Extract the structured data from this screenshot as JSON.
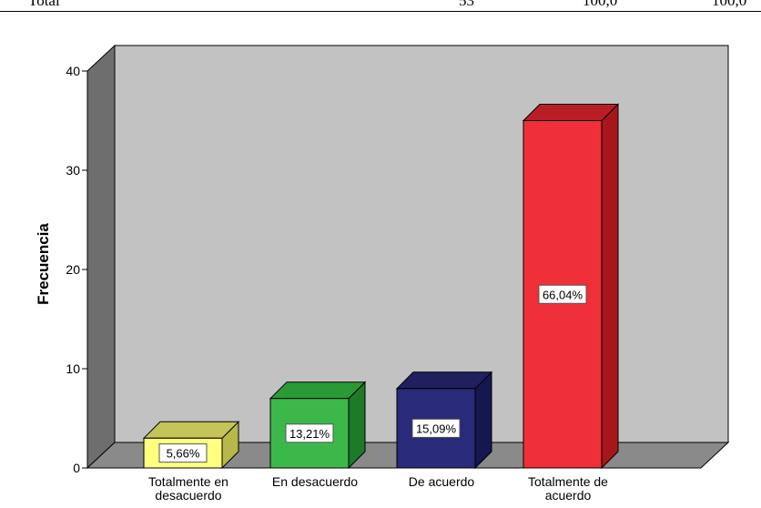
{
  "table_fragment": {
    "row_label": "Total",
    "cells": [
      "53",
      "100,0",
      "100,0"
    ]
  },
  "colors": {
    "wall": "#c2c2c2",
    "floor": "#8a8a8a",
    "left_wall": "#6e6e6e",
    "line": "#000000",
    "label_bg": "#ffffff"
  },
  "chart_data": {
    "type": "bar",
    "title": "",
    "xlabel": "",
    "ylabel": "Frecuencia",
    "ylim": [
      0,
      40
    ],
    "yticks": [
      "0",
      "10",
      "20",
      "30",
      "40"
    ],
    "grid": false,
    "categories": [
      "Totalmente en\ndesacuerdo",
      "En desacuerdo",
      "De acuerdo",
      "Totalmente de\nacuerdo"
    ],
    "values": [
      3,
      7,
      8,
      35
    ],
    "data_labels": [
      "5,66%",
      "13,21%",
      "15,09%",
      "66,04%"
    ],
    "bar_colors": [
      {
        "front": "#ffff80",
        "side": "#b8b84a",
        "top": "#c4c45a"
      },
      {
        "front": "#3cb84a",
        "side": "#1e7a28",
        "top": "#2a9a34"
      },
      {
        "front": "#2a2a7a",
        "side": "#161650",
        "top": "#20205e"
      },
      {
        "front": "#ef3038",
        "side": "#a8161c",
        "top": "#b81e24"
      }
    ]
  }
}
